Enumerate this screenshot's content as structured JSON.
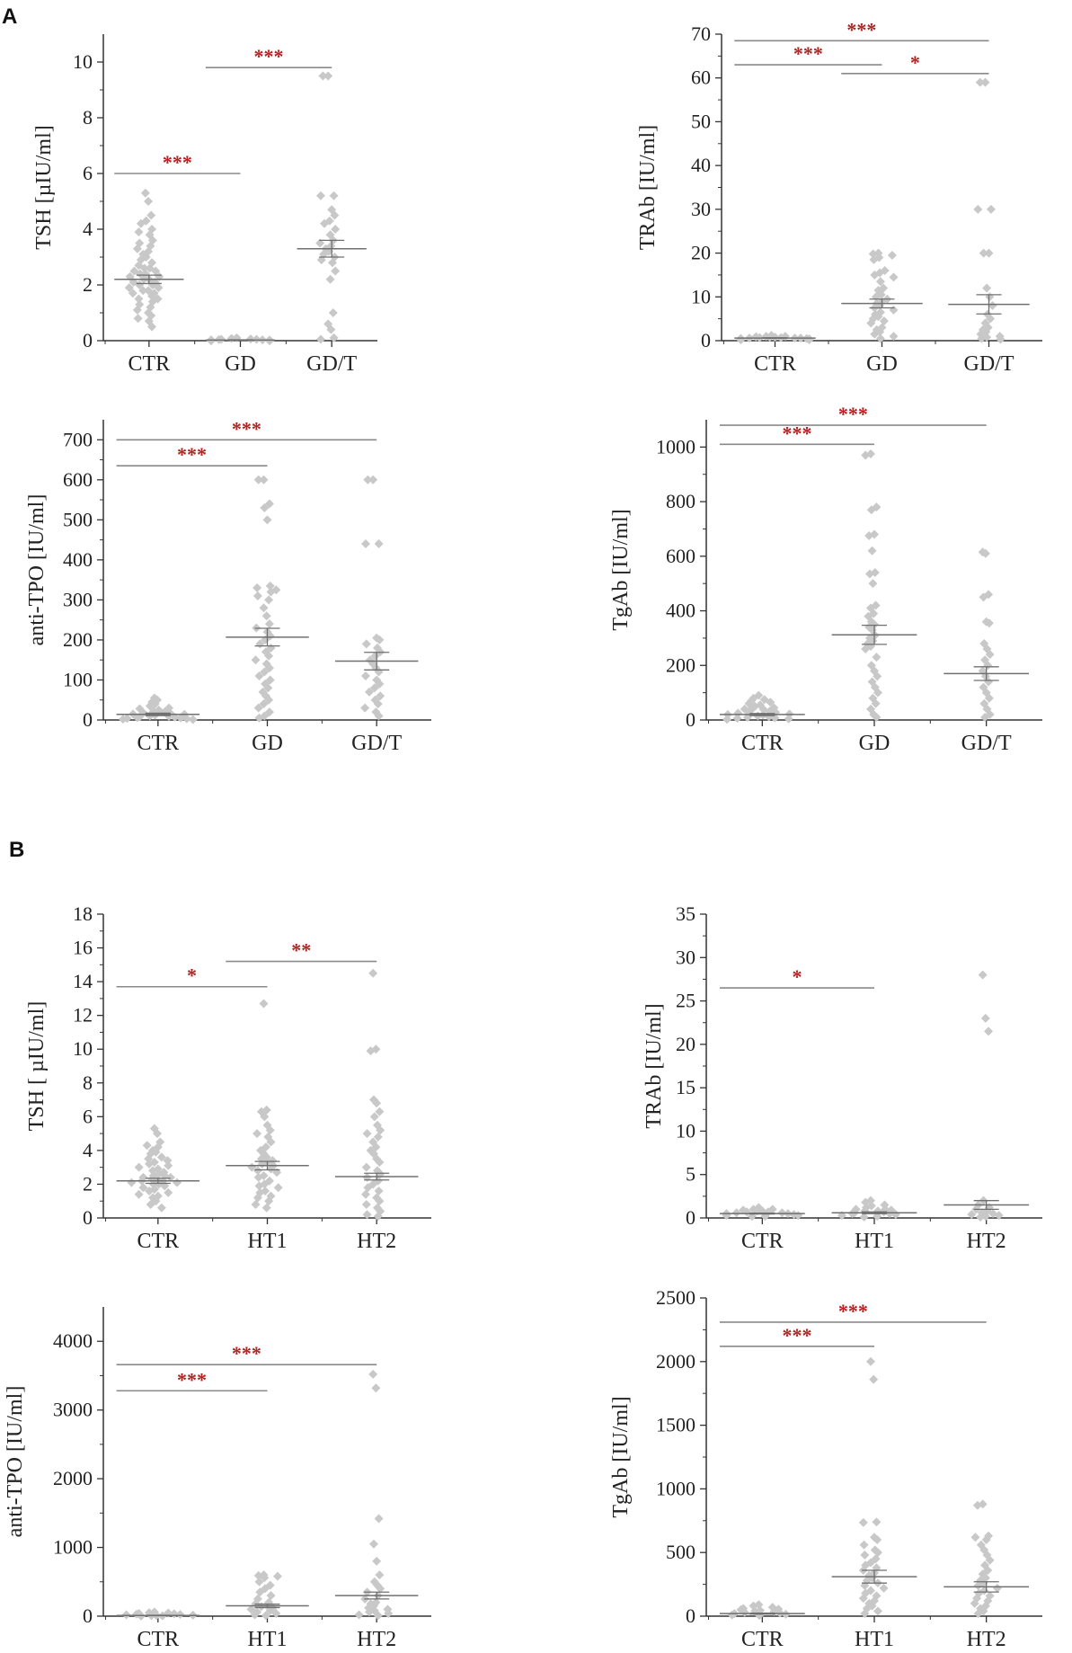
{
  "panel_labels": [
    "A",
    "B"
  ],
  "colors": {
    "point": "#c8c8c8",
    "axis": "#333333",
    "bracket": "#8a8a8a",
    "mean_line": "#707070",
    "significance": "#b22222"
  },
  "chart_data": [
    {
      "type": "scatter",
      "ylabel": "TSH [µIU/ml]",
      "ylim": [
        0,
        11
      ],
      "yticks": [
        0,
        2,
        4,
        6,
        8,
        10
      ],
      "categories": [
        "CTR",
        "GD",
        "GD/T"
      ],
      "means": [
        2.2,
        0.02,
        3.3
      ],
      "sem": [
        0.15,
        0.01,
        0.3
      ],
      "points": [
        [
          5.3,
          5.0,
          4.5,
          4.3,
          4.2,
          4.0,
          3.9,
          3.8,
          3.6,
          3.5,
          3.4,
          3.3,
          3.2,
          3.1,
          3.0,
          2.9,
          2.8,
          2.7,
          2.6,
          2.6,
          2.5,
          2.5,
          2.4,
          2.4,
          2.3,
          2.3,
          2.2,
          2.2,
          2.1,
          2.1,
          2.0,
          2.0,
          1.9,
          1.9,
          1.8,
          1.8,
          1.7,
          1.7,
          1.6,
          1.5,
          1.5,
          1.4,
          1.3,
          1.2,
          1.1,
          1.0,
          0.9,
          0.8,
          0.7,
          0.5
        ],
        [
          0.1,
          0.08,
          0.06,
          0.05,
          0.05,
          0.04,
          0.03,
          0.03,
          0.02,
          0.02,
          0.02,
          0.01,
          0.01,
          0.01,
          0.01,
          0.0,
          0.0,
          0.0,
          0.0,
          0.0
        ],
        [
          9.5,
          9.5,
          5.2,
          5.2,
          4.7,
          4.5,
          4.3,
          4.2,
          4.0,
          3.8,
          3.6,
          3.5,
          3.4,
          3.3,
          3.2,
          3.1,
          3.0,
          2.9,
          2.8,
          2.5,
          2.2,
          1.0,
          0.6,
          0.4,
          0.1,
          0.05
        ]
      ],
      "brackets": [
        {
          "from": 0,
          "to": 1,
          "y": 6.0,
          "label": "***"
        },
        {
          "from": 1,
          "to": 2,
          "y": 9.8,
          "label": "***"
        }
      ]
    },
    {
      "type": "scatter",
      "ylabel": "TRAb [IU/ml]",
      "ylim": [
        0,
        70
      ],
      "yticks": [
        0,
        10,
        20,
        30,
        40,
        50,
        60,
        70
      ],
      "categories": [
        "CTR",
        "GD",
        "GD/T"
      ],
      "means": [
        0.6,
        8.5,
        8.3
      ],
      "sem": [
        0.05,
        1.0,
        2.2
      ],
      "points": [
        [
          1.2,
          1.0,
          1.0,
          0.9,
          0.8,
          0.8,
          0.7,
          0.7,
          0.6,
          0.6,
          0.6,
          0.5,
          0.5,
          0.5,
          0.4,
          0.4,
          0.3,
          0.3,
          0.2,
          0.2
        ],
        [
          20.0,
          19.8,
          19.5,
          19.0,
          18.5,
          16.0,
          15.5,
          15.0,
          14.5,
          13.5,
          12.0,
          11.5,
          10.5,
          10.0,
          9.5,
          9.0,
          8.5,
          8.0,
          7.5,
          7.0,
          6.5,
          6.0,
          5.5,
          5.0,
          4.5,
          4.0,
          3.0,
          2.5,
          2.0,
          1.5,
          1.0,
          0.5
        ],
        [
          59.0,
          59.0,
          30.0,
          30.0,
          20.0,
          20.0,
          12.0,
          10.0,
          8.0,
          6.0,
          5.0,
          4.0,
          3.0,
          2.5,
          2.0,
          1.5,
          1.0,
          0.8,
          0.5,
          0.3
        ]
      ],
      "brackets": [
        {
          "from": 0,
          "to": 2,
          "y": 68.5,
          "label": "***"
        },
        {
          "from": 0,
          "to": 1,
          "y": 63.0,
          "label": "***"
        },
        {
          "from": 1,
          "to": 2,
          "y": 61.0,
          "label": "*"
        }
      ]
    },
    {
      "type": "scatter",
      "ylabel": "anti-TPO [IU/ml]",
      "ylim": [
        0,
        750
      ],
      "yticks": [
        0,
        100,
        200,
        300,
        400,
        500,
        600,
        700
      ],
      "categories": [
        "CTR",
        "GD",
        "GD/T"
      ],
      "means": [
        14,
        207,
        147
      ],
      "sem": [
        3,
        22,
        22
      ],
      "points": [
        [
          55,
          50,
          45,
          40,
          35,
          30,
          28,
          25,
          22,
          20,
          18,
          16,
          15,
          14,
          12,
          10,
          9,
          8,
          7,
          6,
          5,
          4,
          3,
          2,
          1
        ],
        [
          600,
          600,
          540,
          530,
          500,
          335,
          330,
          325,
          320,
          310,
          300,
          280,
          260,
          240,
          230,
          220,
          210,
          200,
          190,
          180,
          170,
          160,
          150,
          140,
          130,
          120,
          110,
          100,
          90,
          80,
          70,
          60,
          50,
          40,
          30,
          20,
          10,
          5
        ],
        [
          600,
          600,
          440,
          440,
          205,
          200,
          190,
          180,
          170,
          160,
          150,
          140,
          130,
          120,
          110,
          100,
          90,
          80,
          70,
          60,
          50,
          40,
          30,
          20,
          10
        ]
      ],
      "brackets": [
        {
          "from": 0,
          "to": 2,
          "y": 700,
          "label": "***"
        },
        {
          "from": 0,
          "to": 1,
          "y": 635,
          "label": "***"
        }
      ]
    },
    {
      "type": "scatter",
      "ylabel": "TgAb [IU/ml]",
      "ylim": [
        0,
        1100
      ],
      "yticks": [
        0,
        200,
        400,
        600,
        800,
        1000
      ],
      "categories": [
        "CTR",
        "GD",
        "GD/T"
      ],
      "means": [
        20,
        312,
        170
      ],
      "sem": [
        4,
        35,
        25
      ],
      "points": [
        [
          90,
          80,
          75,
          70,
          65,
          60,
          55,
          50,
          45,
          40,
          38,
          35,
          32,
          30,
          28,
          25,
          22,
          20,
          18,
          15,
          12,
          10,
          8,
          6,
          4,
          2
        ],
        [
          975,
          970,
          780,
          770,
          680,
          675,
          620,
          540,
          535,
          500,
          420,
          410,
          390,
          380,
          360,
          350,
          340,
          330,
          310,
          300,
          290,
          280,
          270,
          260,
          230,
          200,
          180,
          160,
          140,
          120,
          100,
          80,
          60,
          40,
          20,
          10
        ],
        [
          615,
          610,
          460,
          450,
          360,
          355,
          280,
          260,
          240,
          220,
          200,
          180,
          160,
          140,
          120,
          100,
          80,
          60,
          40,
          20,
          10
        ]
      ],
      "brackets": [
        {
          "from": 0,
          "to": 2,
          "y": 1080,
          "label": "***"
        },
        {
          "from": 0,
          "to": 1,
          "y": 1010,
          "label": "***"
        }
      ]
    },
    {
      "type": "scatter",
      "ylabel": "TSH [ µIU/ml]",
      "ylim": [
        0,
        18
      ],
      "yticks": [
        0,
        2,
        4,
        6,
        8,
        10,
        12,
        14,
        16,
        18
      ],
      "categories": [
        "CTR",
        "HT1",
        "HT2"
      ],
      "means": [
        2.2,
        3.1,
        2.45
      ],
      "sem": [
        0.15,
        0.25,
        0.2
      ],
      "points": [
        [
          5.3,
          5.0,
          4.5,
          4.3,
          4.2,
          4.0,
          3.9,
          3.8,
          3.6,
          3.5,
          3.4,
          3.3,
          3.2,
          3.1,
          3.0,
          2.9,
          2.8,
          2.7,
          2.6,
          2.5,
          2.5,
          2.4,
          2.4,
          2.3,
          2.3,
          2.2,
          2.2,
          2.1,
          2.1,
          2.0,
          2.0,
          1.9,
          1.8,
          1.7,
          1.6,
          1.5,
          1.4,
          1.3,
          1.2,
          1.0,
          0.8,
          0.6
        ],
        [
          12.7,
          6.4,
          6.3,
          6.0,
          5.5,
          5.2,
          5.0,
          4.8,
          4.5,
          4.2,
          4.0,
          3.8,
          3.6,
          3.5,
          3.4,
          3.3,
          3.2,
          3.1,
          3.0,
          2.9,
          2.8,
          2.7,
          2.5,
          2.4,
          2.2,
          2.0,
          1.9,
          1.8,
          1.6,
          1.5,
          1.3,
          1.2,
          1.0,
          0.8,
          0.6
        ],
        [
          14.5,
          10.0,
          9.9,
          7.0,
          6.8,
          6.3,
          6.0,
          5.5,
          5.2,
          5.0,
          4.8,
          4.5,
          4.2,
          4.0,
          3.8,
          3.5,
          3.3,
          3.0,
          2.8,
          2.6,
          2.4,
          2.2,
          2.0,
          1.8,
          1.6,
          1.4,
          1.2,
          1.0,
          0.8,
          0.6,
          0.4,
          0.2,
          0.1
        ]
      ],
      "brackets": [
        {
          "from": 0,
          "to": 1,
          "y": 13.7,
          "label": "*"
        },
        {
          "from": 1,
          "to": 2,
          "y": 15.2,
          "label": "**"
        }
      ]
    },
    {
      "type": "scatter",
      "ylabel": "TRAb [IU/ml]",
      "ylim": [
        0,
        35
      ],
      "yticks": [
        0,
        5,
        10,
        15,
        20,
        25,
        30,
        35
      ],
      "categories": [
        "CTR",
        "HT1",
        "HT2"
      ],
      "means": [
        0.5,
        0.6,
        1.5
      ],
      "sem": [
        0.05,
        0.1,
        0.5
      ],
      "points": [
        [
          1.2,
          1.0,
          1.0,
          0.9,
          0.8,
          0.8,
          0.7,
          0.7,
          0.6,
          0.6,
          0.5,
          0.5,
          0.4,
          0.4,
          0.3,
          0.3,
          0.2,
          0.2
        ],
        [
          2.0,
          1.8,
          1.5,
          1.4,
          1.2,
          1.0,
          1.0,
          0.9,
          0.8,
          0.8,
          0.7,
          0.6,
          0.5,
          0.5,
          0.4,
          0.3,
          0.2,
          0.1
        ],
        [
          28.0,
          23.0,
          21.5,
          2.0,
          1.5,
          1.2,
          1.0,
          0.8,
          0.6,
          0.5,
          0.4,
          0.3,
          0.2,
          0.1
        ]
      ],
      "brackets": [
        {
          "from": 0,
          "to": 1,
          "y": 26.5,
          "label": "*"
        }
      ]
    },
    {
      "type": "scatter",
      "ylabel": "anti-TPO [IU/ml]",
      "ylim": [
        0,
        4500
      ],
      "yticks": [
        0,
        1000,
        2000,
        3000,
        4000
      ],
      "categories": [
        "CTR",
        "HT1",
        "HT2"
      ],
      "means": [
        10,
        150,
        300
      ],
      "sem": [
        3,
        25,
        50
      ],
      "points": [
        [
          60,
          50,
          45,
          40,
          35,
          30,
          25,
          20,
          15,
          10,
          8,
          5,
          2
        ],
        [
          600,
          590,
          580,
          560,
          500,
          450,
          400,
          350,
          300,
          250,
          200,
          180,
          160,
          140,
          120,
          100,
          80,
          60,
          40,
          20,
          10
        ],
        [
          3520,
          3320,
          1420,
          1050,
          800,
          600,
          500,
          450,
          400,
          350,
          300,
          250,
          200,
          180,
          150,
          120,
          100,
          80,
          60,
          40,
          20,
          10
        ]
      ],
      "brackets": [
        {
          "from": 0,
          "to": 2,
          "y": 3660,
          "label": "***"
        },
        {
          "from": 0,
          "to": 1,
          "y": 3280,
          "label": "***"
        }
      ]
    },
    {
      "type": "scatter",
      "ylabel": "TgAb [IU/ml]",
      "ylim": [
        0,
        2500
      ],
      "yticks": [
        0,
        500,
        1000,
        1500,
        2000,
        2500
      ],
      "categories": [
        "CTR",
        "HT1",
        "HT2"
      ],
      "means": [
        20,
        310,
        230
      ],
      "sem": [
        4,
        50,
        40
      ],
      "points": [
        [
          90,
          80,
          70,
          60,
          55,
          50,
          45,
          40,
          35,
          30,
          25,
          20,
          15,
          10,
          5
        ],
        [
          2000,
          1860,
          740,
          735,
          620,
          600,
          560,
          520,
          500,
          480,
          450,
          420,
          400,
          380,
          360,
          340,
          320,
          300,
          280,
          260,
          240,
          220,
          200,
          180,
          160,
          140,
          120,
          100,
          80,
          60,
          40,
          20
        ],
        [
          880,
          870,
          630,
          620,
          600,
          560,
          520,
          480,
          440,
          400,
          360,
          330,
          300,
          280,
          260,
          240,
          220,
          200,
          180,
          160,
          140,
          120,
          100,
          80,
          60,
          40,
          20
        ]
      ],
      "brackets": [
        {
          "from": 0,
          "to": 2,
          "y": 2310,
          "label": "***"
        },
        {
          "from": 0,
          "to": 1,
          "y": 2120,
          "label": "***"
        }
      ]
    }
  ]
}
